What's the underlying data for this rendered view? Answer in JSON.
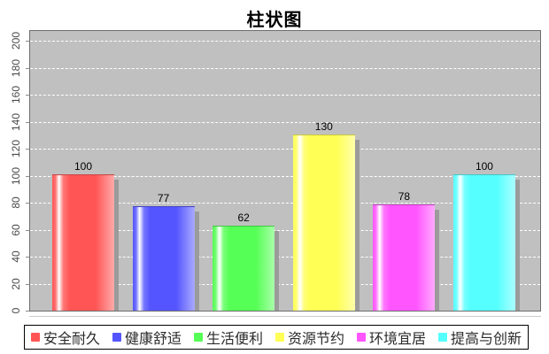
{
  "title": "柱状图",
  "chart_data": {
    "type": "bar",
    "title": "柱状图",
    "xlabel": "",
    "ylabel": "",
    "categories": [
      "安全耐久",
      "健康舒适",
      "生活便利",
      "资源节约",
      "环境宜居",
      "提高与创新"
    ],
    "values": [
      100,
      77,
      62,
      130,
      78,
      100
    ],
    "value_labels": [
      "100",
      "77",
      "62",
      "130",
      "78",
      "100"
    ],
    "series_colors": [
      "#ff5555",
      "#5555ff",
      "#55ff55",
      "#ffff55",
      "#ff55ff",
      "#55ffff"
    ],
    "ylim": [
      0,
      200
    ],
    "yticks": [
      0,
      20,
      40,
      60,
      80,
      100,
      120,
      140,
      160,
      180,
      200
    ],
    "grid": "horizontal-white-dashed",
    "plot_background": "#c0c0c0",
    "gridline_color": "#ffffff",
    "bar_shadow_color": "#9b9b9b",
    "legend_position": "bottom",
    "legend": [
      {
        "label": "安全耐久",
        "color": "#ff5555"
      },
      {
        "label": "健康舒适",
        "color": "#5555ff"
      },
      {
        "label": "生活便利",
        "color": "#55ff55"
      },
      {
        "label": "资源节约",
        "color": "#ffff55"
      },
      {
        "label": "环境宜居",
        "color": "#ff55ff"
      },
      {
        "label": "提高与创新",
        "color": "#55ffff"
      }
    ]
  }
}
